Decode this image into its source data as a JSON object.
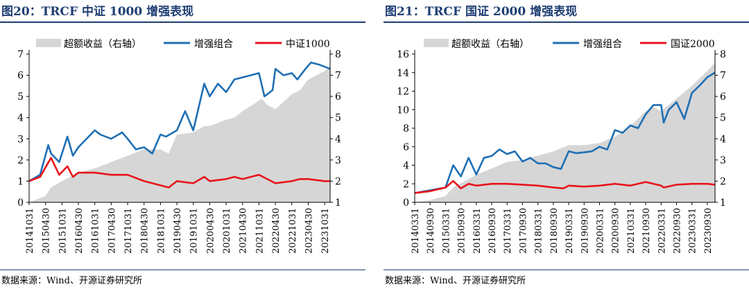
{
  "panels": [
    {
      "title": "图20：TRCF 中证 1000 增强表现",
      "source": "数据来源：Wind、开源证券研究所",
      "legend": {
        "area": "超额收益（右轴）",
        "blue": "增强组合",
        "red": "中证1000"
      }
    },
    {
      "title": "图21：TRCF 国证 2000 增强表现",
      "source": "数据来源：Wind、开源证券研究所",
      "legend": {
        "area": "超额收益（右轴）",
        "blue": "增强组合",
        "red": "国证2000"
      }
    }
  ],
  "colors": {
    "area": "#D6D6D6",
    "blue": "#1F6FB4",
    "red": "#E8141B",
    "accent": "#1F3E73"
  },
  "chart_data": [
    {
      "type": "line",
      "title": "图20：TRCF 中证 1000 增强表现",
      "x_ticks": [
        "20141031",
        "20150430",
        "20151031",
        "20160430",
        "20161031",
        "20170430",
        "20171031",
        "20180430",
        "20181031",
        "20190430",
        "20191031",
        "20200430",
        "20201031",
        "20210430",
        "20211031",
        "20220430",
        "20221031",
        "20230430",
        "20231031"
      ],
      "x_range": [
        "2014-10",
        "2023-12"
      ],
      "y_left": {
        "min": 0,
        "max": 7,
        "ticks": [
          0,
          1,
          2,
          3,
          4,
          5,
          6,
          7
        ]
      },
      "y_right": {
        "min": 1,
        "max": 8,
        "ticks": [
          1,
          2,
          3,
          4,
          5,
          6,
          7,
          8
        ]
      },
      "legend_position": "top",
      "series": [
        {
          "name": "超额收益（右轴）",
          "kind": "area",
          "axis": "right",
          "x": [
            "2014-10",
            "2015-04",
            "2015-06",
            "2015-10",
            "2016-04",
            "2016-10",
            "2017-04",
            "2017-10",
            "2018-04",
            "2018-10",
            "2019-01",
            "2019-04",
            "2019-10",
            "2020-02",
            "2020-04",
            "2020-10",
            "2021-01",
            "2021-04",
            "2021-10",
            "2021-11",
            "2022-01",
            "2022-04",
            "2022-10",
            "2023-01",
            "2023-04",
            "2023-10",
            "2023-12"
          ],
          "y": [
            1.0,
            1.3,
            1.7,
            2.0,
            2.4,
            2.6,
            2.9,
            3.2,
            3.5,
            3.5,
            3.3,
            4.2,
            4.3,
            4.6,
            4.6,
            4.9,
            5.0,
            5.3,
            5.8,
            5.9,
            5.6,
            5.4,
            6.1,
            6.3,
            6.8,
            7.2,
            7.4
          ]
        },
        {
          "name": "增强组合",
          "kind": "line",
          "axis": "left",
          "x": [
            "2014-10",
            "2015-02",
            "2015-05",
            "2015-06",
            "2015-09",
            "2015-12",
            "2016-02",
            "2016-04",
            "2016-10",
            "2016-12",
            "2017-04",
            "2017-08",
            "2017-10",
            "2018-01",
            "2018-04",
            "2018-07",
            "2018-10",
            "2018-12",
            "2019-04",
            "2019-07",
            "2019-10",
            "2020-02",
            "2020-04",
            "2020-07",
            "2020-10",
            "2021-01",
            "2021-04",
            "2021-07",
            "2021-10",
            "2021-12",
            "2022-03",
            "2022-04",
            "2022-07",
            "2022-10",
            "2022-12",
            "2023-03",
            "2023-05",
            "2023-08",
            "2023-10",
            "2023-12"
          ],
          "y": [
            1.0,
            1.3,
            2.7,
            2.3,
            1.9,
            3.1,
            2.2,
            2.6,
            3.4,
            3.2,
            3.0,
            3.3,
            3.0,
            2.5,
            2.6,
            2.3,
            3.2,
            3.1,
            3.4,
            4.3,
            3.4,
            5.6,
            5.0,
            5.6,
            5.2,
            5.8,
            5.9,
            6.0,
            6.1,
            5.0,
            5.3,
            6.3,
            6.0,
            6.1,
            5.8,
            6.3,
            6.6,
            6.5,
            6.4,
            6.3
          ]
        },
        {
          "name": "中证1000",
          "kind": "line",
          "axis": "left",
          "x": [
            "2014-10",
            "2015-02",
            "2015-06",
            "2015-09",
            "2015-12",
            "2016-02",
            "2016-04",
            "2016-10",
            "2017-04",
            "2017-10",
            "2018-04",
            "2018-10",
            "2019-01",
            "2019-04",
            "2019-10",
            "2020-02",
            "2020-04",
            "2020-10",
            "2021-01",
            "2021-04",
            "2021-10",
            "2022-01",
            "2022-04",
            "2022-10",
            "2023-01",
            "2023-04",
            "2023-10",
            "2023-12"
          ],
          "y": [
            1.0,
            1.2,
            2.1,
            1.3,
            1.7,
            1.2,
            1.4,
            1.4,
            1.3,
            1.3,
            1.0,
            0.8,
            0.7,
            1.0,
            0.9,
            1.2,
            1.0,
            1.1,
            1.2,
            1.1,
            1.3,
            1.1,
            0.9,
            1.0,
            1.1,
            1.1,
            1.0,
            1.0
          ]
        }
      ]
    },
    {
      "type": "line",
      "title": "图21：TRCF 国证 2000 增强表现",
      "x_ticks": [
        "20140331",
        "20140930",
        "20150331",
        "20150930",
        "20160331",
        "20160930",
        "20170331",
        "20170930",
        "20180331",
        "20180930",
        "20190331",
        "20190930",
        "20200331",
        "20200930",
        "20210331",
        "20210930",
        "20220331",
        "20220930",
        "20230331",
        "20230930"
      ],
      "x_range": [
        "2014-03",
        "2023-12"
      ],
      "y_left": {
        "min": 0,
        "max": 16,
        "ticks": [
          0,
          2,
          4,
          6,
          8,
          10,
          12,
          14,
          16
        ]
      },
      "y_right": {
        "min": 1,
        "max": 8,
        "ticks": [
          1,
          2,
          3,
          4,
          5,
          6,
          7,
          8
        ]
      },
      "legend_position": "top",
      "series": [
        {
          "name": "超额收益（右轴）",
          "kind": "area",
          "axis": "right",
          "x": [
            "2014-03",
            "2014-09",
            "2015-03",
            "2015-06",
            "2015-09",
            "2016-03",
            "2016-09",
            "2017-03",
            "2017-09",
            "2018-03",
            "2018-09",
            "2019-03",
            "2019-09",
            "2020-03",
            "2020-09",
            "2021-03",
            "2021-09",
            "2021-12",
            "2022-03",
            "2022-09",
            "2023-03",
            "2023-09",
            "2023-12"
          ],
          "y": [
            1.0,
            1.1,
            1.3,
            1.7,
            1.9,
            2.3,
            2.6,
            2.9,
            3.0,
            3.2,
            3.4,
            3.7,
            3.7,
            3.8,
            4.1,
            4.6,
            5.3,
            5.5,
            5.3,
            5.9,
            6.5,
            7.2,
            7.6
          ]
        },
        {
          "name": "增强组合",
          "kind": "line",
          "axis": "left",
          "x": [
            "2014-03",
            "2014-09",
            "2015-03",
            "2015-06",
            "2015-09",
            "2015-12",
            "2016-03",
            "2016-06",
            "2016-09",
            "2016-12",
            "2017-03",
            "2017-06",
            "2017-09",
            "2017-12",
            "2018-03",
            "2018-06",
            "2018-09",
            "2018-12",
            "2019-03",
            "2019-06",
            "2019-09",
            "2019-12",
            "2020-03",
            "2020-06",
            "2020-09",
            "2020-12",
            "2021-03",
            "2021-06",
            "2021-09",
            "2021-12",
            "2022-03",
            "2022-04",
            "2022-06",
            "2022-09",
            "2022-12",
            "2023-03",
            "2023-06",
            "2023-09",
            "2023-12"
          ],
          "y": [
            1.0,
            1.3,
            1.6,
            4.0,
            2.8,
            4.8,
            3.0,
            4.8,
            5.0,
            5.7,
            5.2,
            5.5,
            4.4,
            4.8,
            4.2,
            4.2,
            3.8,
            3.6,
            5.5,
            5.3,
            5.4,
            5.5,
            6.0,
            5.7,
            7.8,
            7.5,
            8.3,
            8.0,
            9.5,
            10.5,
            10.5,
            8.6,
            10.0,
            10.8,
            9.0,
            11.8,
            12.6,
            13.5,
            14.0
          ]
        },
        {
          "name": "国证2000",
          "kind": "line",
          "axis": "left",
          "x": [
            "2014-03",
            "2014-09",
            "2015-03",
            "2015-06",
            "2015-09",
            "2015-12",
            "2016-03",
            "2016-09",
            "2017-03",
            "2017-09",
            "2018-03",
            "2018-09",
            "2019-01",
            "2019-03",
            "2019-09",
            "2020-03",
            "2020-09",
            "2021-03",
            "2021-09",
            "2022-03",
            "2022-04",
            "2022-09",
            "2023-03",
            "2023-09",
            "2023-12"
          ],
          "y": [
            1.0,
            1.2,
            1.6,
            2.3,
            1.5,
            2.0,
            1.8,
            2.0,
            2.0,
            1.9,
            1.8,
            1.6,
            1.5,
            1.8,
            1.7,
            1.8,
            2.0,
            1.8,
            2.2,
            1.8,
            1.6,
            1.9,
            2.0,
            2.0,
            1.9
          ]
        }
      ]
    }
  ]
}
